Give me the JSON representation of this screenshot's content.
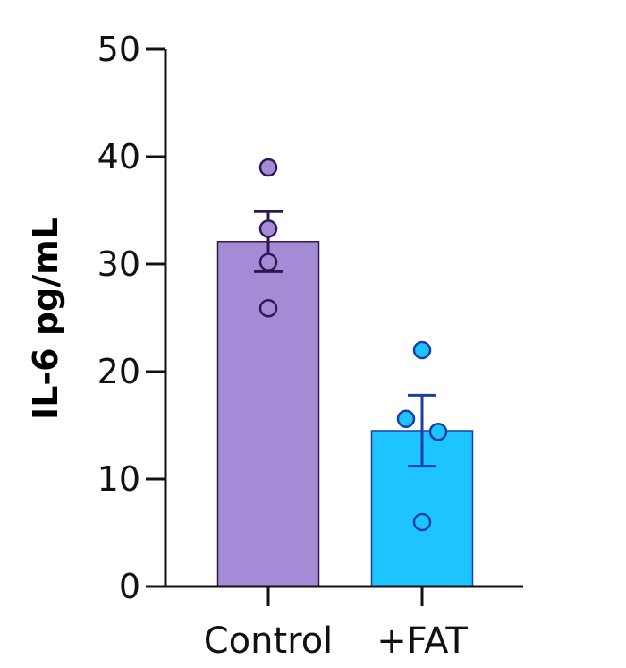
{
  "chart_data": {
    "type": "bar",
    "title": "",
    "xlabel": "",
    "ylabel": "IL-6 pg/mL",
    "ylim": [
      0,
      50
    ],
    "yticks": [
      0,
      10,
      20,
      30,
      40,
      50
    ],
    "ytick_labels": [
      "0",
      "10",
      "20",
      "30",
      "40",
      "50"
    ],
    "grid": false,
    "legend": "none",
    "categories": [
      "Control",
      "+FAT"
    ],
    "values": [
      32.1,
      14.5
    ],
    "error": [
      2.8,
      3.3
    ],
    "points": [
      [
        39.0,
        33.3,
        30.2,
        25.9
      ],
      [
        22.0,
        15.6,
        14.4,
        6.0
      ]
    ],
    "colors": {
      "bar_fill": [
        "#a58bd5",
        "#1ec4ff"
      ],
      "bar_stroke": [
        "#2a1a52",
        "#1a3fa6"
      ],
      "point_fill": [
        "#a58bd5",
        "#1ec4ff"
      ],
      "point_stroke": [
        "#2a1a52",
        "#1a3fa6"
      ],
      "axis": "#111111"
    }
  }
}
